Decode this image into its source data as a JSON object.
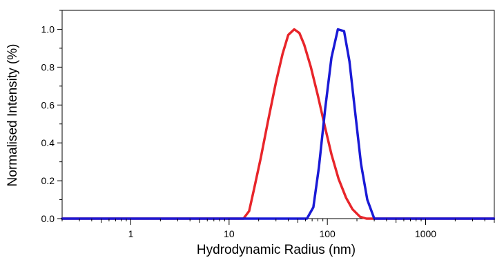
{
  "chart_data": {
    "type": "line",
    "title": "",
    "xlabel": "Hydrodynamic Radius (nm)",
    "ylabel": "Normalised Intensity (%)",
    "xscale": "log",
    "xlim": [
      0.2,
      5000
    ],
    "ylim": [
      0,
      1.1
    ],
    "grid": false,
    "legend": "none",
    "x_ticks": [
      1,
      10,
      100,
      1000
    ],
    "x_tick_labels": [
      "1",
      "10",
      "100",
      "1000"
    ],
    "y_ticks": [
      0.0,
      0.2,
      0.4,
      0.6,
      0.8,
      1.0
    ],
    "y_tick_labels": [
      "0.0",
      "0.2",
      "0.4",
      "0.6",
      "0.8",
      "1.0"
    ],
    "series": [
      {
        "color": "#e8252a",
        "points": [
          [
            0.2,
            0
          ],
          [
            14,
            0
          ],
          [
            16,
            0.04
          ],
          [
            18,
            0.16
          ],
          [
            21,
            0.32
          ],
          [
            25,
            0.52
          ],
          [
            30,
            0.72
          ],
          [
            35,
            0.87
          ],
          [
            40,
            0.97
          ],
          [
            46,
            1.0
          ],
          [
            52,
            0.98
          ],
          [
            58,
            0.92
          ],
          [
            68,
            0.8
          ],
          [
            80,
            0.65
          ],
          [
            95,
            0.48
          ],
          [
            110,
            0.34
          ],
          [
            130,
            0.21
          ],
          [
            155,
            0.11
          ],
          [
            180,
            0.05
          ],
          [
            215,
            0.01
          ],
          [
            250,
            0
          ],
          [
            5000,
            0
          ]
        ]
      },
      {
        "color": "#1a1ad6",
        "points": [
          [
            0.2,
            0
          ],
          [
            62,
            0
          ],
          [
            72,
            0.06
          ],
          [
            82,
            0.27
          ],
          [
            95,
            0.58
          ],
          [
            110,
            0.85
          ],
          [
            128,
            1.0
          ],
          [
            148,
            0.99
          ],
          [
            168,
            0.83
          ],
          [
            192,
            0.56
          ],
          [
            220,
            0.29
          ],
          [
            255,
            0.1
          ],
          [
            300,
            0
          ],
          [
            5000,
            0
          ]
        ]
      }
    ]
  }
}
